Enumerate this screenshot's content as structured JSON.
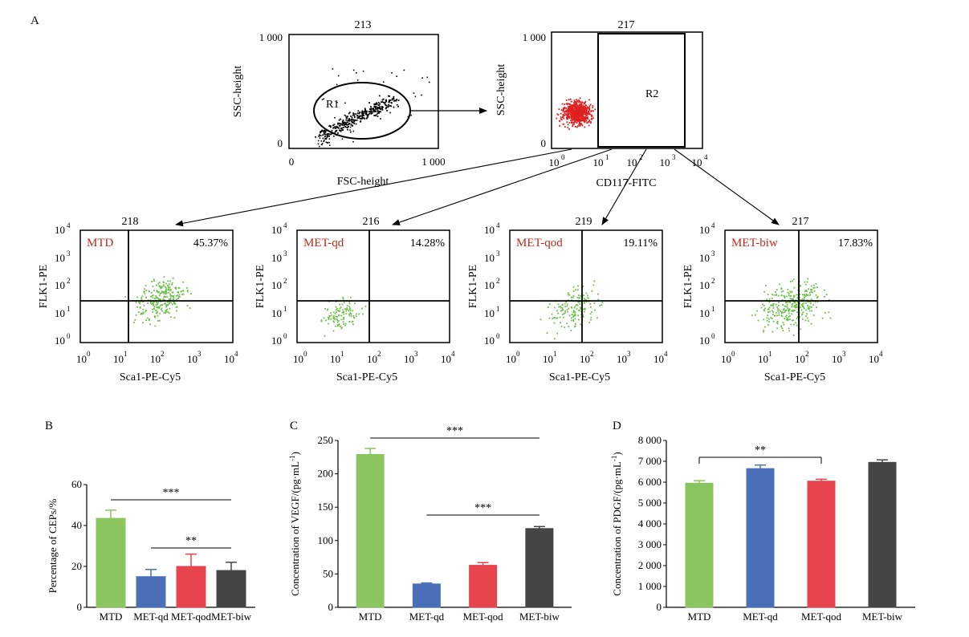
{
  "panel_labels": {
    "a": "A",
    "b": "B",
    "c": "C",
    "d": "D"
  },
  "colors": {
    "red_dots": "#e02020",
    "green_dots": "#6cc04a",
    "bar_colors": [
      "#8bc55f",
      "#4a6fb8",
      "#e6454d",
      "#454545"
    ],
    "group_label_color": "#c0281e"
  },
  "chart_data": [
    {
      "type": "scatter",
      "id": "fsc_ssc",
      "title": "213",
      "xlabel": "FSC-height",
      "ylabel": "SSC-height",
      "x_ticks": [
        "0",
        "1 000"
      ],
      "y_ticks": [
        "0",
        "1 000"
      ],
      "xlim": [
        0,
        1000
      ],
      "ylim": [
        0,
        1000
      ],
      "gate_label": "R1"
    },
    {
      "type": "scatter",
      "id": "cd117_ssc",
      "title": "217",
      "xlabel": "CD117-FITC",
      "ylabel": "SSC-height",
      "x_ticks": [
        "10",
        "10",
        "10",
        "10",
        "10"
      ],
      "x_tick_exponents": [
        "0",
        "1",
        "2",
        "3",
        "4"
      ],
      "y_ticks": [
        "0",
        "1 000"
      ],
      "x_scale": "log",
      "xlim": [
        1,
        10000
      ],
      "ylim": [
        0,
        1000
      ],
      "gate_label": "R2"
    },
    {
      "type": "scatter",
      "id": "quad_mtd",
      "title": "218",
      "group": "MTD",
      "percent": "45.37%",
      "xlabel": "Sca1-PE-Cy5",
      "ylabel": "FLK1-PE",
      "x_scale": "log",
      "y_scale": "log",
      "xlim": [
        1,
        10000
      ],
      "ylim": [
        1,
        10000
      ]
    },
    {
      "type": "scatter",
      "id": "quad_qd",
      "title": "216",
      "group": "MET-qd",
      "percent": "14.28%",
      "xlabel": "Sca1-PE-Cy5",
      "ylabel": "FLK1-PE",
      "x_scale": "log",
      "y_scale": "log",
      "xlim": [
        1,
        10000
      ],
      "ylim": [
        1,
        10000
      ]
    },
    {
      "type": "scatter",
      "id": "quad_qod",
      "title": "219",
      "group": "MET-qod",
      "percent": "19.11%",
      "xlabel": "Sca1-PE-Cy5",
      "ylabel": "FLK1-PE",
      "x_scale": "log",
      "y_scale": "log",
      "xlim": [
        1,
        10000
      ],
      "ylim": [
        1,
        10000
      ]
    },
    {
      "type": "scatter",
      "id": "quad_biw",
      "title": "217",
      "group": "MET-biw",
      "percent": "17.83%",
      "xlabel": "Sca1-PE-Cy5",
      "ylabel": "FLK1-PE",
      "x_scale": "log",
      "y_scale": "log",
      "xlim": [
        1,
        10000
      ],
      "ylim": [
        1,
        10000
      ]
    },
    {
      "type": "bar",
      "id": "ceps",
      "categories": [
        "MTD",
        "MET-qd",
        "MET-qod",
        "MET-biw"
      ],
      "values": [
        43.5,
        15,
        20,
        18
      ],
      "errors": [
        4,
        3.5,
        6,
        4
      ],
      "ylabel": "Percentage of CEPs/%",
      "ylim": [
        0,
        60
      ],
      "yticks": [
        0,
        20,
        40,
        60
      ],
      "significance": [
        {
          "from": 0,
          "to": 3,
          "label": "***"
        },
        {
          "from": 1,
          "to": 3,
          "label": "**"
        }
      ]
    },
    {
      "type": "bar",
      "id": "vegf",
      "categories": [
        "MTD",
        "MET-qd",
        "MET-qod",
        "MET-biw"
      ],
      "values": [
        229,
        35,
        63,
        118
      ],
      "errors": [
        9,
        1.5,
        4,
        3
      ],
      "ylabel": "Concentration of VEGF/(pg·mL",
      "ylabel_sup": "-1",
      "ylabel_end": ")",
      "ylim": [
        0,
        250
      ],
      "yticks": [
        0,
        50,
        100,
        150,
        200,
        250
      ],
      "significance": [
        {
          "from": 0,
          "to": 3,
          "label": "***"
        },
        {
          "from": 1,
          "to": 3,
          "label": "***"
        }
      ]
    },
    {
      "type": "bar",
      "id": "pdgf",
      "categories": [
        "MTD",
        "MET-qd",
        "MET-qod",
        "MET-biw"
      ],
      "values": [
        5950,
        6650,
        6050,
        6950
      ],
      "errors": [
        120,
        170,
        90,
        120
      ],
      "ylabel": "Concentration of PDGF/(pg·mL",
      "ylabel_sup": "-1",
      "ylabel_end": ")",
      "ylim": [
        0,
        8000
      ],
      "yticks": [
        0,
        1000,
        2000,
        3000,
        4000,
        5000,
        6000,
        7000,
        8000
      ],
      "ytick_labels": [
        "0",
        "1 000",
        "2 000",
        "3 000",
        "4 000",
        "5 000",
        "6 000",
        "7 000",
        "8 000"
      ],
      "significance": [
        {
          "from": 0,
          "to": 2,
          "label": "**"
        }
      ]
    }
  ]
}
